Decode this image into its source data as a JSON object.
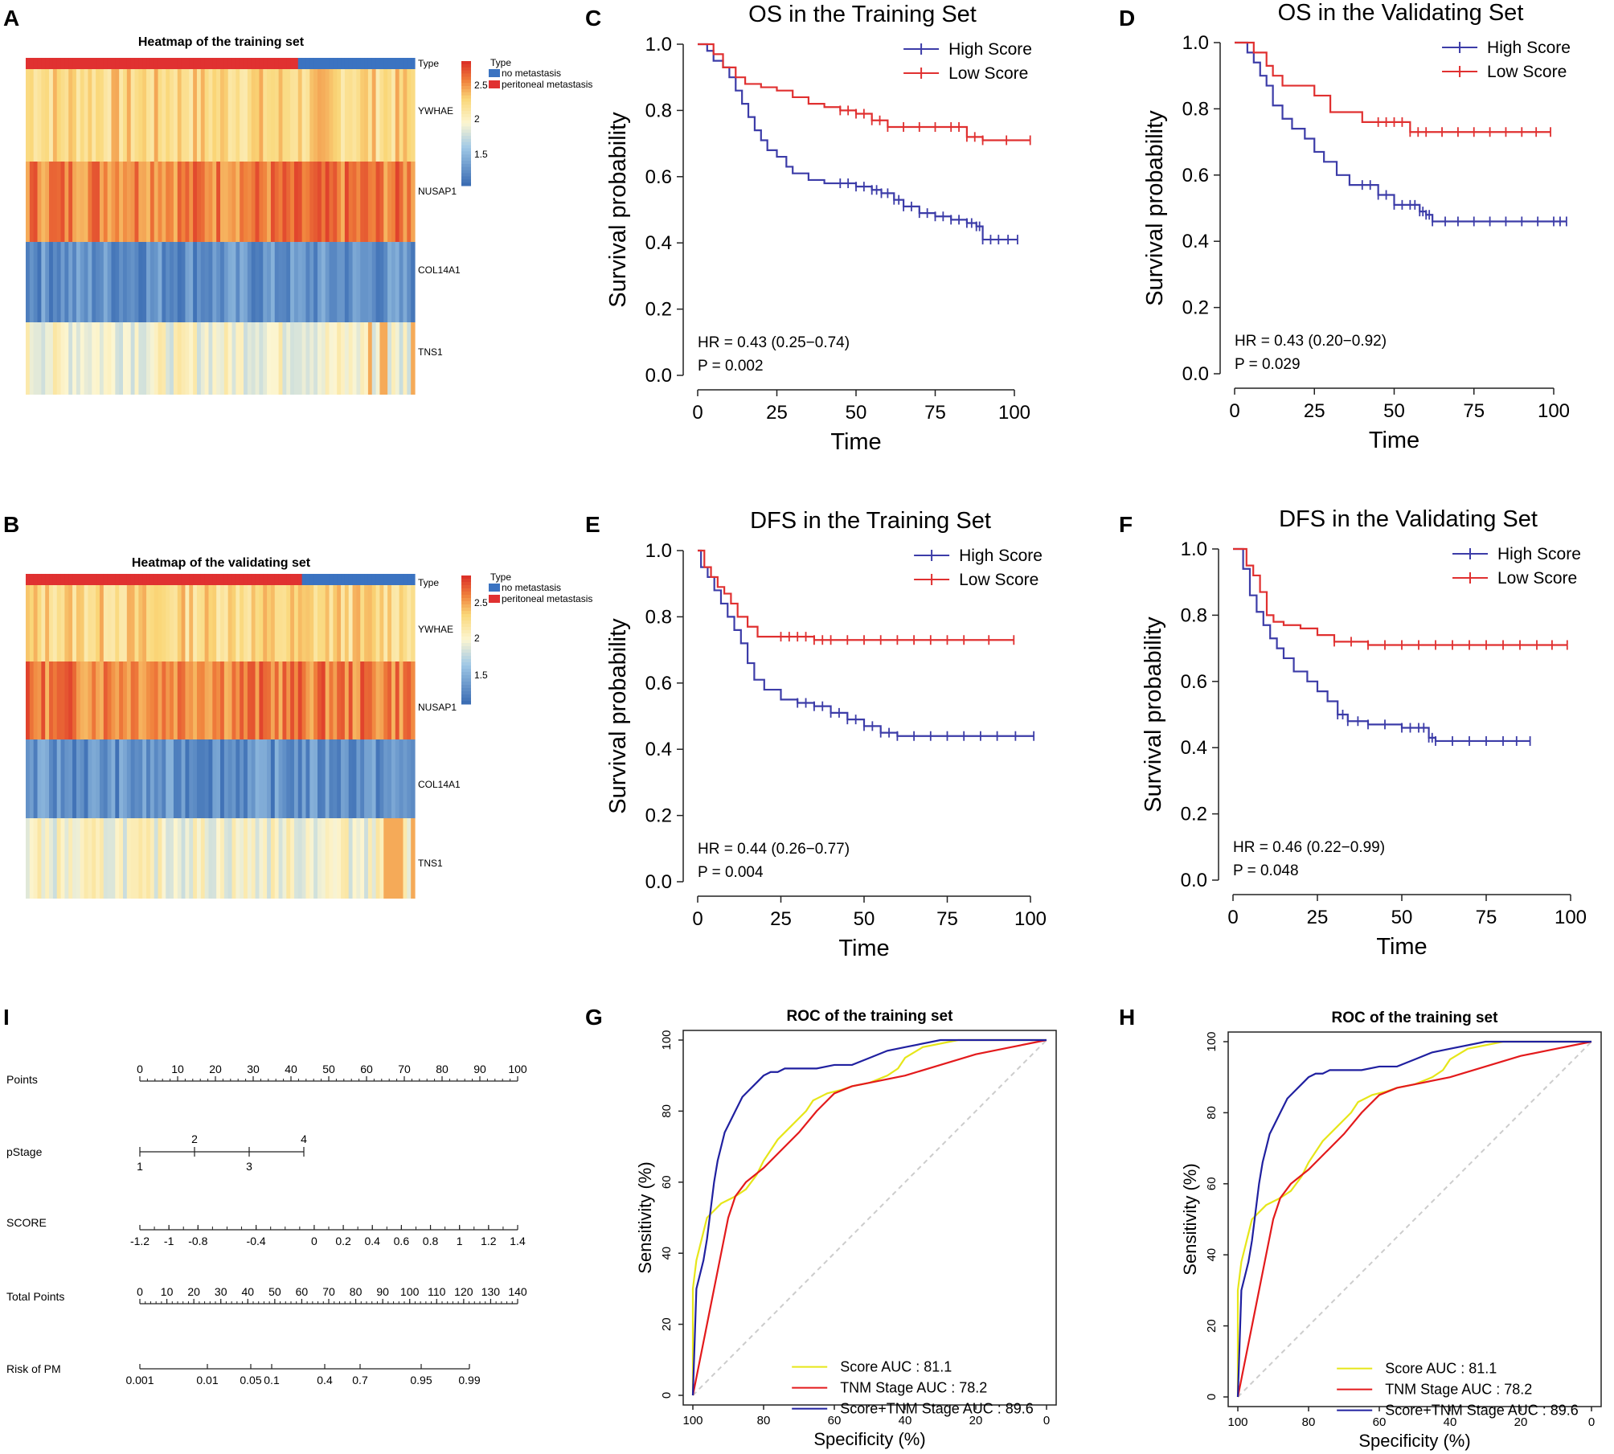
{
  "panel_letters": [
    "A",
    "B",
    "C",
    "D",
    "E",
    "F",
    "G",
    "H",
    "I"
  ],
  "heatmaps": [
    {
      "title": "Heatmap of the training set",
      "genes": [
        "YWHAE",
        "NUSAP1",
        "COL14A1",
        "TNS1"
      ],
      "legend_title": "Type",
      "legend_items": [
        "no metastasis",
        "peritoneal metastasis"
      ],
      "scale_ticks": [
        "2.5",
        "2",
        "1.5"
      ],
      "type_label": "Type",
      "colors": {
        "metastasis": "#e03131",
        "none": "#3b73c1"
      }
    },
    {
      "title": "Heatmap of the validating set",
      "genes": [
        "YWHAE",
        "NUSAP1",
        "COL14A1",
        "TNS1"
      ],
      "legend_title": "Type",
      "legend_items": [
        "no metastasis",
        "peritoneal metastasis"
      ],
      "scale_ticks": [
        "2.5",
        "2",
        "1.5"
      ],
      "type_label": "Type",
      "colors": {
        "metastasis": "#e03131",
        "none": "#3b73c1"
      }
    }
  ],
  "nomogram": {
    "rows": [
      {
        "label": "Points",
        "ticks": [
          "0",
          "10",
          "20",
          "30",
          "40",
          "50",
          "60",
          "70",
          "80",
          "90",
          "100"
        ]
      },
      {
        "label": "pStage",
        "ticks_top": [
          "2",
          "4"
        ],
        "ticks_bottom": [
          "1",
          "3"
        ]
      },
      {
        "label": "SCORE",
        "ticks": [
          "-1.2",
          "-1",
          "-0.8",
          "-0.4",
          "0",
          "0.2",
          "0.4",
          "0.6",
          "0.8",
          "1",
          "1.2",
          "1.4"
        ]
      },
      {
        "label": "Total Points",
        "ticks": [
          "0",
          "10",
          "20",
          "30",
          "40",
          "50",
          "60",
          "70",
          "80",
          "90",
          "100",
          "110",
          "120",
          "130",
          "140"
        ]
      },
      {
        "label": "Risk of PM",
        "ticks": [
          "0.001",
          "0.01",
          "0.05",
          "0.1",
          "0.4",
          "0.7",
          "0.95",
          "0.99"
        ]
      }
    ]
  },
  "chart_data": [
    {
      "type": "line",
      "panel": "C",
      "title": "OS in the Training Set",
      "xlabel": "Time",
      "ylabel": "Survival probability",
      "xlim": [
        0,
        100
      ],
      "ylim": [
        0,
        1
      ],
      "x_ticks": [
        "0",
        "25",
        "50",
        "75",
        "100"
      ],
      "y_ticks": [
        "0.0",
        "0.2",
        "0.4",
        "0.6",
        "0.8",
        "1.0"
      ],
      "annotations": [
        "HR = 0.43 (0.25−0.74)",
        "P = 0.002"
      ],
      "series": [
        {
          "name": "High Score",
          "color": "#3c3ca8",
          "x": [
            0,
            3,
            5,
            8,
            10,
            12,
            14,
            16,
            18,
            20,
            22,
            25,
            28,
            30,
            35,
            40,
            45,
            50,
            55,
            58,
            62,
            65,
            70,
            75,
            80,
            85,
            88,
            90,
            95,
            101
          ],
          "values": [
            1,
            0.98,
            0.95,
            0.93,
            0.9,
            0.86,
            0.82,
            0.78,
            0.74,
            0.71,
            0.68,
            0.66,
            0.63,
            0.61,
            0.59,
            0.58,
            0.58,
            0.57,
            0.56,
            0.55,
            0.53,
            0.51,
            0.49,
            0.48,
            0.47,
            0.46,
            0.45,
            0.41,
            0.41,
            0.41
          ]
        },
        {
          "name": "Low Score",
          "color": "#e03030",
          "x": [
            0,
            5,
            8,
            12,
            15,
            20,
            25,
            30,
            35,
            40,
            45,
            50,
            55,
            60,
            70,
            80,
            85,
            90,
            105
          ],
          "values": [
            1,
            0.97,
            0.93,
            0.9,
            0.88,
            0.87,
            0.86,
            0.84,
            0.82,
            0.81,
            0.8,
            0.79,
            0.77,
            0.75,
            0.75,
            0.75,
            0.72,
            0.71,
            0.71
          ]
        }
      ]
    },
    {
      "type": "line",
      "panel": "D",
      "title": "OS in the Validating Set",
      "xlabel": "Time",
      "ylabel": "Survival probability",
      "xlim": [
        0,
        100
      ],
      "ylim": [
        0,
        1
      ],
      "x_ticks": [
        "0",
        "25",
        "50",
        "75",
        "100"
      ],
      "y_ticks": [
        "0.0",
        "0.2",
        "0.4",
        "0.6",
        "0.8",
        "1.0"
      ],
      "annotations": [
        "HR = 0.43 (0.20−0.92)",
        "P = 0.029"
      ],
      "series": [
        {
          "name": "High Score",
          "color": "#3c3ca8",
          "x": [
            0,
            4,
            6,
            8,
            10,
            12,
            15,
            18,
            22,
            25,
            28,
            32,
            36,
            40,
            45,
            50,
            55,
            58,
            60,
            62,
            70,
            80,
            90,
            100,
            104
          ],
          "values": [
            1,
            0.97,
            0.94,
            0.9,
            0.87,
            0.81,
            0.77,
            0.74,
            0.71,
            0.67,
            0.64,
            0.6,
            0.57,
            0.57,
            0.54,
            0.51,
            0.51,
            0.49,
            0.48,
            0.46,
            0.46,
            0.46,
            0.46,
            0.46,
            0.46
          ]
        },
        {
          "name": "Low Score",
          "color": "#e03030",
          "x": [
            0,
            6,
            10,
            12,
            15,
            20,
            25,
            30,
            40,
            45,
            50,
            55,
            60,
            70,
            80,
            90,
            99
          ],
          "values": [
            1,
            0.97,
            0.93,
            0.9,
            0.87,
            0.87,
            0.84,
            0.79,
            0.76,
            0.76,
            0.76,
            0.73,
            0.73,
            0.73,
            0.73,
            0.73,
            0.73
          ]
        }
      ]
    },
    {
      "type": "line",
      "panel": "E",
      "title": "DFS in the Training Set",
      "xlabel": "Time",
      "ylabel": "Survival probability",
      "xlim": [
        0,
        100
      ],
      "ylim": [
        0,
        1
      ],
      "x_ticks": [
        "0",
        "25",
        "50",
        "75",
        "100"
      ],
      "y_ticks": [
        "0.0",
        "0.2",
        "0.4",
        "0.6",
        "0.8",
        "1.0"
      ],
      "annotations": [
        "HR = 0.44 (0.26−0.77)",
        "P = 0.004"
      ],
      "series": [
        {
          "name": "High Score",
          "color": "#3c3ca8",
          "x": [
            0,
            1,
            3,
            5,
            7,
            9,
            11,
            13,
            15,
            17,
            20,
            25,
            30,
            35,
            40,
            45,
            50,
            55,
            60,
            70,
            80,
            90,
            101
          ],
          "values": [
            1,
            0.95,
            0.92,
            0.88,
            0.84,
            0.8,
            0.76,
            0.72,
            0.66,
            0.61,
            0.58,
            0.55,
            0.54,
            0.53,
            0.51,
            0.49,
            0.47,
            0.45,
            0.44,
            0.44,
            0.44,
            0.44,
            0.44
          ]
        },
        {
          "name": "Low Score",
          "color": "#e03030",
          "x": [
            0,
            2,
            4,
            6,
            8,
            10,
            12,
            15,
            18,
            20,
            25,
            30,
            35,
            40,
            50,
            60,
            70,
            80,
            95
          ],
          "values": [
            1,
            0.95,
            0.92,
            0.89,
            0.87,
            0.84,
            0.8,
            0.77,
            0.74,
            0.74,
            0.74,
            0.74,
            0.73,
            0.73,
            0.73,
            0.73,
            0.73,
            0.73,
            0.73
          ]
        }
      ]
    },
    {
      "type": "line",
      "panel": "F",
      "title": "DFS in the Validating Set",
      "xlabel": "Time",
      "ylabel": "Survival probability",
      "xlim": [
        0,
        100
      ],
      "ylim": [
        0,
        1
      ],
      "x_ticks": [
        "0",
        "25",
        "50",
        "75",
        "100"
      ],
      "y_ticks": [
        "0.0",
        "0.2",
        "0.4",
        "0.6",
        "0.8",
        "1.0"
      ],
      "annotations": [
        "HR = 0.46 (0.22−0.99)",
        "P = 0.048"
      ],
      "series": [
        {
          "name": "High Score",
          "color": "#3c3ca8",
          "x": [
            0,
            3,
            5,
            7,
            9,
            11,
            13,
            15,
            18,
            22,
            25,
            28,
            31,
            34,
            40,
            50,
            55,
            58,
            60,
            70,
            80,
            88
          ],
          "values": [
            1,
            0.94,
            0.86,
            0.81,
            0.77,
            0.73,
            0.7,
            0.67,
            0.63,
            0.6,
            0.57,
            0.54,
            0.5,
            0.48,
            0.47,
            0.46,
            0.46,
            0.43,
            0.42,
            0.42,
            0.42,
            0.42
          ]
        },
        {
          "name": "Low Score",
          "color": "#e03030",
          "x": [
            0,
            4,
            6,
            8,
            10,
            12,
            15,
            20,
            25,
            30,
            40,
            50,
            60,
            70,
            80,
            90,
            99
          ],
          "values": [
            1,
            0.95,
            0.92,
            0.87,
            0.8,
            0.78,
            0.77,
            0.76,
            0.74,
            0.72,
            0.71,
            0.71,
            0.71,
            0.71,
            0.71,
            0.71,
            0.71
          ]
        }
      ]
    },
    {
      "type": "line",
      "panel": "G",
      "title": "ROC of the training set",
      "xlabel": "Specificity (%)",
      "ylabel": "Sensitivity (%)",
      "xlim": [
        100,
        0
      ],
      "ylim": [
        0,
        100
      ],
      "x_ticks": [
        "100",
        "80",
        "60",
        "40",
        "20",
        "0"
      ],
      "y_ticks": [
        "0",
        "20",
        "40",
        "60",
        "80",
        "100"
      ],
      "series": [
        {
          "name": "Score AUC : 81.1",
          "color": "#e6e619",
          "x": [
            100,
            100,
            99,
            98,
            97,
            96,
            94,
            92,
            90,
            88,
            85,
            82,
            80,
            76,
            72,
            70,
            68,
            66,
            62,
            58,
            55,
            50,
            45,
            42,
            40,
            35,
            25,
            15,
            0
          ],
          "values": [
            0,
            30,
            38,
            42,
            46,
            50,
            52,
            54,
            55,
            56,
            58,
            62,
            66,
            72,
            76,
            78,
            80,
            83,
            85,
            86,
            87,
            88,
            90,
            92,
            95,
            98,
            100,
            100,
            100
          ]
        },
        {
          "name": "TNM Stage AUC : 78.2",
          "color": "#e31a1c",
          "x": [
            100,
            98,
            96,
            94,
            92,
            90,
            88,
            85,
            80,
            75,
            70,
            65,
            60,
            55,
            50,
            40,
            30,
            20,
            10,
            0
          ],
          "values": [
            0,
            10,
            20,
            30,
            40,
            50,
            56,
            60,
            64,
            69,
            74,
            80,
            85,
            87,
            88,
            90,
            93,
            96,
            98,
            100
          ]
        },
        {
          "name": "Score+TNM Stage AUC : 89.6",
          "color": "#2020a0",
          "x": [
            100,
            99,
            98,
            97,
            96,
            95,
            94,
            93,
            92,
            91,
            90,
            89,
            88,
            86,
            84,
            82,
            80,
            78,
            76,
            74,
            72,
            70,
            65,
            60,
            55,
            50,
            45,
            40,
            30,
            20,
            0
          ],
          "values": [
            0,
            30,
            34,
            38,
            44,
            52,
            60,
            66,
            70,
            74,
            76,
            78,
            80,
            84,
            86,
            88,
            90,
            91,
            91,
            92,
            92,
            92,
            92,
            93,
            93,
            95,
            97,
            98,
            100,
            100,
            100
          ]
        },
        {
          "name": "reference",
          "color": "#cccccc",
          "x": [
            100,
            0
          ],
          "values": [
            0,
            100
          ]
        }
      ]
    },
    {
      "type": "line",
      "panel": "H",
      "title": "ROC of the training set",
      "xlabel": "Specificity (%)",
      "ylabel": "Sensitivity (%)",
      "xlim": [
        100,
        0
      ],
      "ylim": [
        0,
        100
      ],
      "x_ticks": [
        "100",
        "80",
        "60",
        "40",
        "20",
        "0"
      ],
      "y_ticks": [
        "0",
        "20",
        "40",
        "60",
        "80",
        "100"
      ],
      "series": [
        {
          "name": "Score AUC : 81.1",
          "color": "#e6e619",
          "x": [
            100,
            100,
            99,
            98,
            97,
            96,
            94,
            92,
            90,
            88,
            85,
            82,
            80,
            76,
            72,
            70,
            68,
            66,
            62,
            58,
            55,
            50,
            45,
            42,
            40,
            35,
            25,
            15,
            0
          ],
          "values": [
            0,
            30,
            38,
            42,
            46,
            50,
            52,
            54,
            55,
            56,
            58,
            62,
            66,
            72,
            76,
            78,
            80,
            83,
            85,
            86,
            87,
            88,
            90,
            92,
            95,
            98,
            100,
            100,
            100
          ]
        },
        {
          "name": "TNM Stage AUC : 78.2",
          "color": "#e31a1c",
          "x": [
            100,
            98,
            96,
            94,
            92,
            90,
            88,
            85,
            80,
            75,
            70,
            65,
            60,
            55,
            50,
            40,
            30,
            20,
            10,
            0
          ],
          "values": [
            0,
            10,
            20,
            30,
            40,
            50,
            56,
            60,
            64,
            69,
            74,
            80,
            85,
            87,
            88,
            90,
            93,
            96,
            98,
            100
          ]
        },
        {
          "name": "Score+TNM Stage AUC : 89.6",
          "color": "#2020a0",
          "x": [
            100,
            99,
            98,
            97,
            96,
            95,
            94,
            93,
            92,
            91,
            90,
            89,
            88,
            86,
            84,
            82,
            80,
            78,
            76,
            74,
            72,
            70,
            65,
            60,
            55,
            50,
            45,
            40,
            30,
            20,
            0
          ],
          "values": [
            0,
            30,
            34,
            38,
            44,
            52,
            60,
            66,
            70,
            74,
            76,
            78,
            80,
            84,
            86,
            88,
            90,
            91,
            91,
            92,
            92,
            92,
            92,
            93,
            93,
            95,
            97,
            98,
            100,
            100,
            100
          ]
        },
        {
          "name": "reference",
          "color": "#cccccc",
          "x": [
            100,
            0
          ],
          "values": [
            0,
            100
          ]
        }
      ]
    }
  ]
}
